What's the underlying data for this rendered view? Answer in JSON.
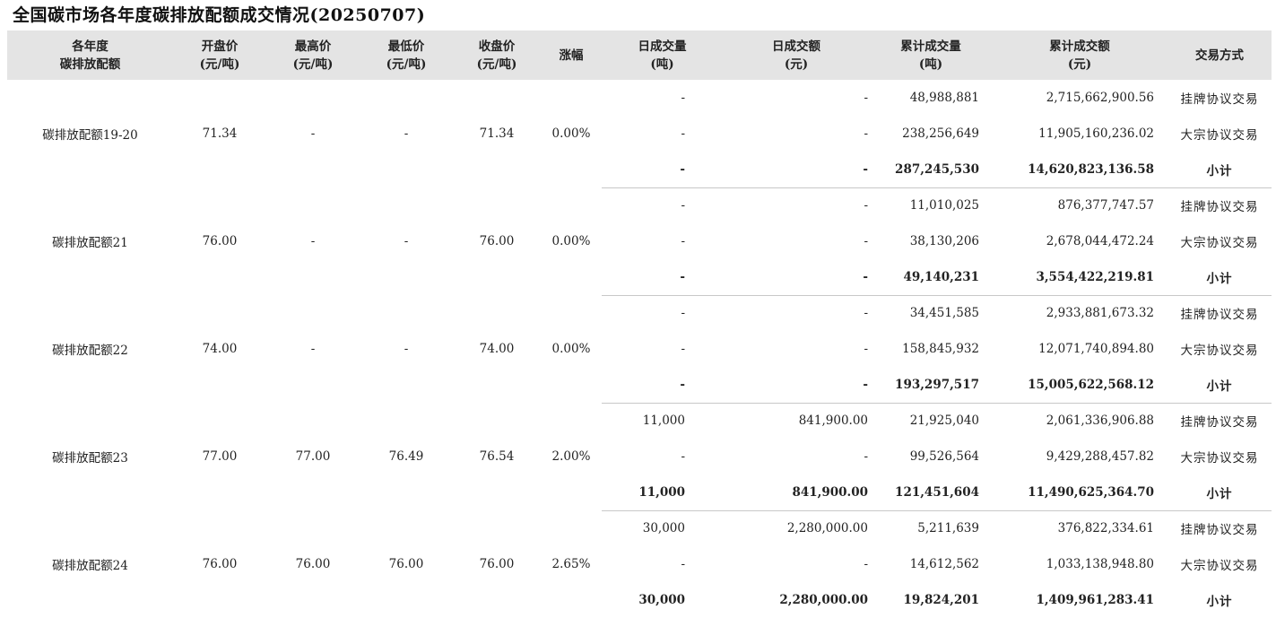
{
  "title": "全国碳市场各年度碳排放配额成交情况(20250707)",
  "headers": [
    "各年度\n碳排放配额",
    "开盘价\n(元/吨)",
    "最高价\n(元/吨)",
    "最低价\n(元/吨)",
    "收盘价\n(元/吨)",
    "涨幅",
    "日成交量\n(吨)",
    "日成交额\n(元)",
    "累计成交量\n(吨)",
    "累计成交额\n(元)",
    "交易方式"
  ],
  "groups": [
    {
      "name": "碳排放配额19-20",
      "open": "71.34",
      "high": "-",
      "low": "-",
      "close": "71.34",
      "change": "0.00%",
      "rows": [
        {
          "day_volume": "-",
          "day_amount": "-",
          "cum_volume": "48,988,881",
          "cum_amount": "2,715,662,900.56",
          "mode": "挂牌协议交易"
        },
        {
          "day_volume": "-",
          "day_amount": "-",
          "cum_volume": "238,256,649",
          "cum_amount": "11,905,160,236.02",
          "mode": "大宗协议交易"
        },
        {
          "day_volume": "-",
          "day_amount": "-",
          "cum_volume": "287,245,530",
          "cum_amount": "14,620,823,136.58",
          "mode": "小计"
        }
      ]
    },
    {
      "name": "碳排放配额21",
      "open": "76.00",
      "high": "-",
      "low": "-",
      "close": "76.00",
      "change": "0.00%",
      "rows": [
        {
          "day_volume": "-",
          "day_amount": "-",
          "cum_volume": "11,010,025",
          "cum_amount": "876,377,747.57",
          "mode": "挂牌协议交易"
        },
        {
          "day_volume": "-",
          "day_amount": "-",
          "cum_volume": "38,130,206",
          "cum_amount": "2,678,044,472.24",
          "mode": "大宗协议交易"
        },
        {
          "day_volume": "-",
          "day_amount": "-",
          "cum_volume": "49,140,231",
          "cum_amount": "3,554,422,219.81",
          "mode": "小计"
        }
      ]
    },
    {
      "name": "碳排放配额22",
      "open": "74.00",
      "high": "-",
      "low": "-",
      "close": "74.00",
      "change": "0.00%",
      "rows": [
        {
          "day_volume": "-",
          "day_amount": "-",
          "cum_volume": "34,451,585",
          "cum_amount": "2,933,881,673.32",
          "mode": "挂牌协议交易"
        },
        {
          "day_volume": "-",
          "day_amount": "-",
          "cum_volume": "158,845,932",
          "cum_amount": "12,071,740,894.80",
          "mode": "大宗协议交易"
        },
        {
          "day_volume": "-",
          "day_amount": "-",
          "cum_volume": "193,297,517",
          "cum_amount": "15,005,622,568.12",
          "mode": "小计"
        }
      ]
    },
    {
      "name": "碳排放配额23",
      "open": "77.00",
      "high": "77.00",
      "low": "76.49",
      "close": "76.54",
      "change": "2.00%",
      "rows": [
        {
          "day_volume": "11,000",
          "day_amount": "841,900.00",
          "cum_volume": "21,925,040",
          "cum_amount": "2,061,336,906.88",
          "mode": "挂牌协议交易"
        },
        {
          "day_volume": "-",
          "day_amount": "-",
          "cum_volume": "99,526,564",
          "cum_amount": "9,429,288,457.82",
          "mode": "大宗协议交易"
        },
        {
          "day_volume": "11,000",
          "day_amount": "841,900.00",
          "cum_volume": "121,451,604",
          "cum_amount": "11,490,625,364.70",
          "mode": "小计"
        }
      ]
    },
    {
      "name": "碳排放配额24",
      "open": "76.00",
      "high": "76.00",
      "low": "76.00",
      "close": "76.00",
      "change": "2.65%",
      "rows": [
        {
          "day_volume": "30,000",
          "day_amount": "2,280,000.00",
          "cum_volume": "5,211,639",
          "cum_amount": "376,822,334.61",
          "mode": "挂牌协议交易"
        },
        {
          "day_volume": "-",
          "day_amount": "-",
          "cum_volume": "14,612,562",
          "cum_amount": "1,033,138,948.80",
          "mode": "大宗协议交易"
        },
        {
          "day_volume": "30,000",
          "day_amount": "2,280,000.00",
          "cum_volume": "19,824,201",
          "cum_amount": "1,409,961,283.41",
          "mode": "小计"
        }
      ]
    }
  ]
}
